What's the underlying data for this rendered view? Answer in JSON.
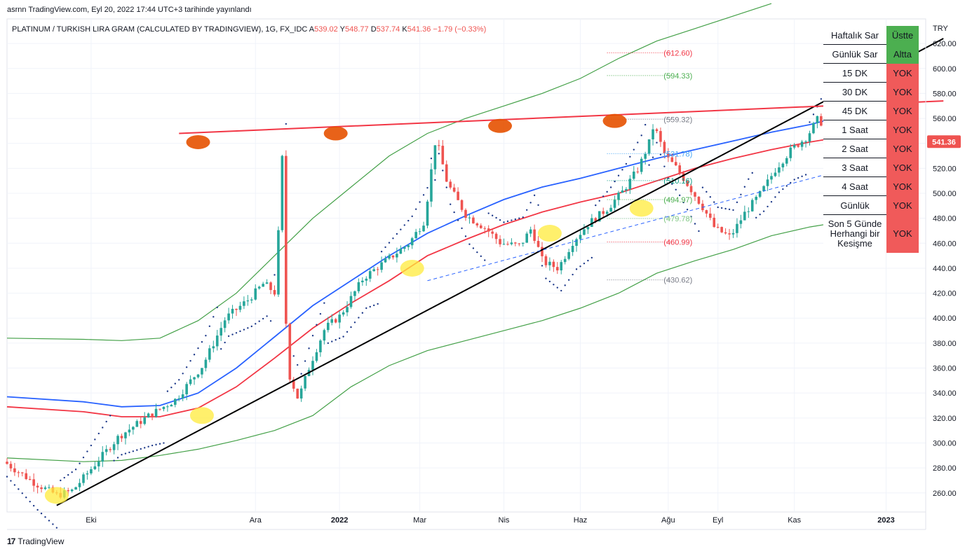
{
  "publisher": "asrnn TradingView.com, Eyl 20, 2022 17:44 UTC+3 tarihinde yayınlandı",
  "footer": {
    "brand": "TradingView",
    "mark": "17"
  },
  "legend": {
    "symbol": "PLATINUM / TURKISH LIRA GRAM (CALCULATED BY TRADINGVIEW), 1G, FX_IDC",
    "ohlc": [
      {
        "key": "A",
        "value": "539.02"
      },
      {
        "key": "Y",
        "value": "548.77"
      },
      {
        "key": "D",
        "value": "537.74"
      },
      {
        "key": "K",
        "value": "541.36"
      }
    ],
    "change": "−1.79 (−0.33%)"
  },
  "signal_table": [
    {
      "label": "Haftalık Sar",
      "value": "Üstte",
      "state": "green"
    },
    {
      "label": "Günlük Sar",
      "value": "Altta",
      "state": "green"
    },
    {
      "label": "15 DK",
      "value": "YOK",
      "state": "red"
    },
    {
      "label": "30 DK",
      "value": "YOK",
      "state": "red"
    },
    {
      "label": "45 DK",
      "value": "YOK",
      "state": "red"
    },
    {
      "label": "1 Saat",
      "value": "YOK",
      "state": "red"
    },
    {
      "label": "2 Saat",
      "value": "YOK",
      "state": "red"
    },
    {
      "label": "3 Saat",
      "value": "YOK",
      "state": "red"
    },
    {
      "label": "4 Saat",
      "value": "YOK",
      "state": "red"
    },
    {
      "label": "Günlük",
      "value": "YOK",
      "state": "red"
    },
    {
      "label": "Son 5 Günde Herhangi bir Kesişme",
      "value": "YOK",
      "state": "red"
    }
  ],
  "colors": {
    "up": "#26a69a",
    "down": "#ef5350",
    "ma_blue": "#2962ff",
    "ma_red": "#f23645",
    "band_green": "#43a047",
    "sar": "#1e3a8a",
    "trend_black": "#000000",
    "resistance": "#f23645",
    "dashed": "#2962ff",
    "top_marker": "#e65100",
    "bottom_marker": "#ffeb3b"
  },
  "chart_data": {
    "type": "candlestick",
    "currency": "TRY",
    "last_price": "541.36",
    "y_range": [
      245,
      640
    ],
    "y_ticks": [
      260,
      280,
      300,
      320,
      340,
      360,
      380,
      400,
      420,
      440,
      460,
      480,
      500,
      520,
      540,
      560,
      580,
      600,
      620
    ],
    "y_tick_labels": [
      "260.00",
      "280.00",
      "300.00",
      "320.00",
      "340.00",
      "360.00",
      "380.00",
      "400.00",
      "420.00",
      "440.00",
      "460.00",
      "480.00",
      "500.00",
      "520.00",
      "540.00",
      "560.00",
      "580.00",
      "600.00",
      "620.00"
    ],
    "x_labels": [
      "Eki",
      "Ara",
      "2022",
      "Mar",
      "Nis",
      "Haz",
      "Ağu",
      "Eyl",
      "Kas",
      "2023"
    ],
    "x_label_index": [
      22,
      65,
      87,
      108,
      130,
      150,
      173,
      186,
      206,
      230
    ],
    "x_domain": [
      0,
      245
    ],
    "price_path": [
      [
        0,
        285
      ],
      [
        8,
        268
      ],
      [
        14,
        258
      ],
      [
        18,
        262
      ],
      [
        23,
        280
      ],
      [
        30,
        305
      ],
      [
        38,
        322
      ],
      [
        45,
        335
      ],
      [
        52,
        362
      ],
      [
        58,
        400
      ],
      [
        64,
        415
      ],
      [
        68,
        428
      ],
      [
        71,
        420
      ],
      [
        73,
        540
      ],
      [
        74,
        360
      ],
      [
        77,
        335
      ],
      [
        80,
        362
      ],
      [
        84,
        392
      ],
      [
        88,
        402
      ],
      [
        94,
        432
      ],
      [
        100,
        446
      ],
      [
        106,
        460
      ],
      [
        110,
        478
      ],
      [
        113,
        545
      ],
      [
        116,
        508
      ],
      [
        121,
        482
      ],
      [
        126,
        472
      ],
      [
        130,
        460
      ],
      [
        135,
        458
      ],
      [
        138,
        472
      ],
      [
        141,
        445
      ],
      [
        145,
        440
      ],
      [
        149,
        462
      ],
      [
        153,
        476
      ],
      [
        158,
        488
      ],
      [
        162,
        502
      ],
      [
        166,
        520
      ],
      [
        169,
        542
      ],
      [
        170,
        555
      ],
      [
        173,
        530
      ],
      [
        176,
        520
      ],
      [
        180,
        502
      ],
      [
        183,
        488
      ],
      [
        186,
        472
      ],
      [
        190,
        465
      ],
      [
        194,
        485
      ],
      [
        198,
        500
      ],
      [
        202,
        520
      ],
      [
        206,
        535
      ],
      [
        210,
        545
      ],
      [
        213,
        560
      ],
      [
        216,
        548
      ],
      [
        219,
        532
      ],
      [
        222,
        508
      ],
      [
        225,
        495
      ],
      [
        228,
        492
      ],
      [
        231,
        508
      ],
      [
        234,
        525
      ],
      [
        237,
        540
      ],
      [
        238,
        541
      ]
    ],
    "levels": [
      {
        "label": "(612.60)",
        "value": 612.6,
        "color": "#f23645"
      },
      {
        "label": "(594.33)",
        "value": 594.33,
        "color": "#4caf50"
      },
      {
        "label": "(559.32)",
        "value": 559.32,
        "color": "#787b86"
      },
      {
        "label": "(531.78)",
        "value": 531.78,
        "color": "#42a5f5"
      },
      {
        "label": "(510.16)",
        "value": 510.16,
        "color": "#089981"
      },
      {
        "label": "(494.97)",
        "value": 494.97,
        "color": "#4caf50"
      },
      {
        "label": "(479.78)",
        "value": 479.78,
        "color": "#81c784"
      },
      {
        "label": "(460.99)",
        "value": 460.99,
        "color": "#f23645"
      },
      {
        "label": "(430.62)",
        "value": 430.62,
        "color": "#787b86"
      }
    ],
    "ma_blue": [
      [
        0,
        337
      ],
      [
        20,
        333
      ],
      [
        30,
        329
      ],
      [
        40,
        330
      ],
      [
        50,
        340
      ],
      [
        60,
        360
      ],
      [
        70,
        385
      ],
      [
        80,
        410
      ],
      [
        90,
        430
      ],
      [
        100,
        450
      ],
      [
        110,
        468
      ],
      [
        120,
        482
      ],
      [
        130,
        495
      ],
      [
        140,
        505
      ],
      [
        150,
        512
      ],
      [
        160,
        520
      ],
      [
        170,
        528
      ],
      [
        180,
        535
      ],
      [
        190,
        542
      ],
      [
        200,
        549
      ],
      [
        210,
        555
      ],
      [
        220,
        563
      ],
      [
        230,
        568
      ],
      [
        238,
        574
      ]
    ],
    "ma_red": [
      [
        0,
        329
      ],
      [
        20,
        325
      ],
      [
        30,
        321
      ],
      [
        40,
        321
      ],
      [
        50,
        328
      ],
      [
        60,
        345
      ],
      [
        70,
        368
      ],
      [
        80,
        392
      ],
      [
        90,
        412
      ],
      [
        100,
        430
      ],
      [
        110,
        450
      ],
      [
        120,
        463
      ],
      [
        130,
        475
      ],
      [
        140,
        485
      ],
      [
        150,
        493
      ],
      [
        160,
        500
      ],
      [
        170,
        510
      ],
      [
        180,
        520
      ],
      [
        190,
        528
      ],
      [
        200,
        535
      ],
      [
        210,
        541
      ],
      [
        220,
        546
      ],
      [
        230,
        550
      ],
      [
        238,
        555
      ]
    ],
    "band_upper": [
      [
        0,
        384
      ],
      [
        20,
        383
      ],
      [
        30,
        382
      ],
      [
        40,
        384
      ],
      [
        50,
        398
      ],
      [
        60,
        420
      ],
      [
        70,
        450
      ],
      [
        80,
        480
      ],
      [
        90,
        505
      ],
      [
        100,
        530
      ],
      [
        110,
        548
      ],
      [
        120,
        560
      ],
      [
        130,
        570
      ],
      [
        140,
        580
      ],
      [
        150,
        592
      ],
      [
        160,
        608
      ],
      [
        170,
        622
      ],
      [
        180,
        632
      ],
      [
        190,
        642
      ],
      [
        200,
        652
      ]
    ],
    "band_lower": [
      [
        0,
        288
      ],
      [
        20,
        285
      ],
      [
        30,
        286
      ],
      [
        40,
        290
      ],
      [
        50,
        295
      ],
      [
        60,
        302
      ],
      [
        70,
        310
      ],
      [
        80,
        322
      ],
      [
        90,
        345
      ],
      [
        100,
        362
      ],
      [
        110,
        374
      ],
      [
        120,
        382
      ],
      [
        130,
        390
      ],
      [
        140,
        398
      ],
      [
        150,
        408
      ],
      [
        160,
        420
      ],
      [
        170,
        436
      ],
      [
        180,
        446
      ],
      [
        190,
        455
      ],
      [
        200,
        466
      ],
      [
        210,
        473
      ],
      [
        220,
        478
      ]
    ],
    "trend_support": [
      [
        13,
        250
      ],
      [
        245,
        624
      ]
    ],
    "trend_resistance": [
      [
        45,
        548
      ],
      [
        245,
        574
      ]
    ],
    "trend_dashed": [
      [
        110,
        430
      ],
      [
        230,
        528
      ]
    ],
    "top_markers": [
      [
        50,
        541
      ],
      [
        86,
        548
      ],
      [
        129,
        554
      ],
      [
        159,
        558
      ]
    ],
    "bottom_markers": [
      [
        13,
        258
      ],
      [
        51,
        322
      ],
      [
        106,
        440
      ],
      [
        142,
        468
      ],
      [
        166,
        488
      ]
    ]
  }
}
